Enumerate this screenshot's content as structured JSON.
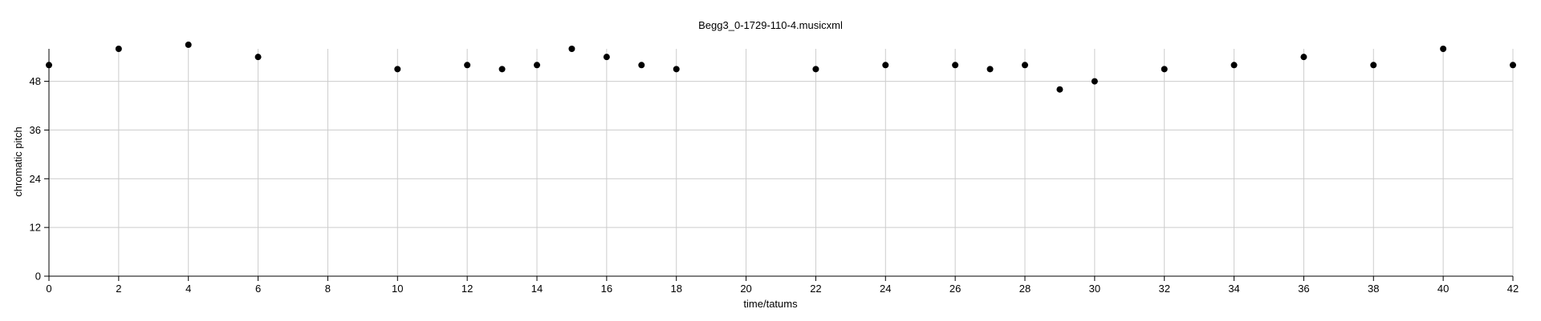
{
  "chart_data": {
    "type": "scatter",
    "title": "Begg3_0-1729-110-4.musicxml",
    "xlabel": "time/tatums",
    "ylabel": "chromatic pitch",
    "xlim": [
      0,
      42
    ],
    "ylim": [
      0,
      56
    ],
    "xticks": [
      0,
      2,
      4,
      6,
      8,
      10,
      12,
      14,
      16,
      18,
      20,
      22,
      24,
      26,
      28,
      30,
      32,
      34,
      36,
      38,
      40,
      42
    ],
    "yticks": [
      0,
      12,
      24,
      36,
      48
    ],
    "grid": true,
    "marker_color": "#000000",
    "points": [
      {
        "x": 0,
        "y": 52
      },
      {
        "x": 2,
        "y": 56
      },
      {
        "x": 4,
        "y": 57
      },
      {
        "x": 6,
        "y": 54
      },
      {
        "x": 10,
        "y": 51
      },
      {
        "x": 12,
        "y": 52
      },
      {
        "x": 13,
        "y": 51
      },
      {
        "x": 14,
        "y": 52
      },
      {
        "x": 15,
        "y": 56
      },
      {
        "x": 16,
        "y": 54
      },
      {
        "x": 17,
        "y": 52
      },
      {
        "x": 18,
        "y": 51
      },
      {
        "x": 22,
        "y": 51
      },
      {
        "x": 24,
        "y": 52
      },
      {
        "x": 26,
        "y": 52
      },
      {
        "x": 27,
        "y": 51
      },
      {
        "x": 28,
        "y": 52
      },
      {
        "x": 29,
        "y": 46
      },
      {
        "x": 30,
        "y": 48
      },
      {
        "x": 32,
        "y": 51
      },
      {
        "x": 34,
        "y": 52
      },
      {
        "x": 36,
        "y": 54
      },
      {
        "x": 38,
        "y": 52
      },
      {
        "x": 40,
        "y": 56
      },
      {
        "x": 42,
        "y": 52
      }
    ]
  }
}
